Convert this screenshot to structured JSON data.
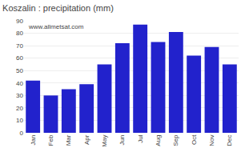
{
  "chart_data": {
    "type": "bar",
    "title": "Koszalin : precipitation (mm)",
    "categories": [
      "Jan",
      "Feb",
      "Mar",
      "Apr",
      "May",
      "Jun",
      "Jul",
      "Aug",
      "Sep",
      "Oct",
      "Nov",
      "Dec"
    ],
    "values": [
      42,
      30,
      35,
      39,
      55,
      72,
      87,
      73,
      81,
      62,
      69,
      55
    ],
    "color": "#2222cc",
    "ylim": [
      0,
      90
    ],
    "yticks": [
      0,
      10,
      20,
      30,
      40,
      50,
      60,
      70,
      80,
      90
    ],
    "grid": true,
    "annotations": [
      "www.allmetsat.com"
    ]
  }
}
